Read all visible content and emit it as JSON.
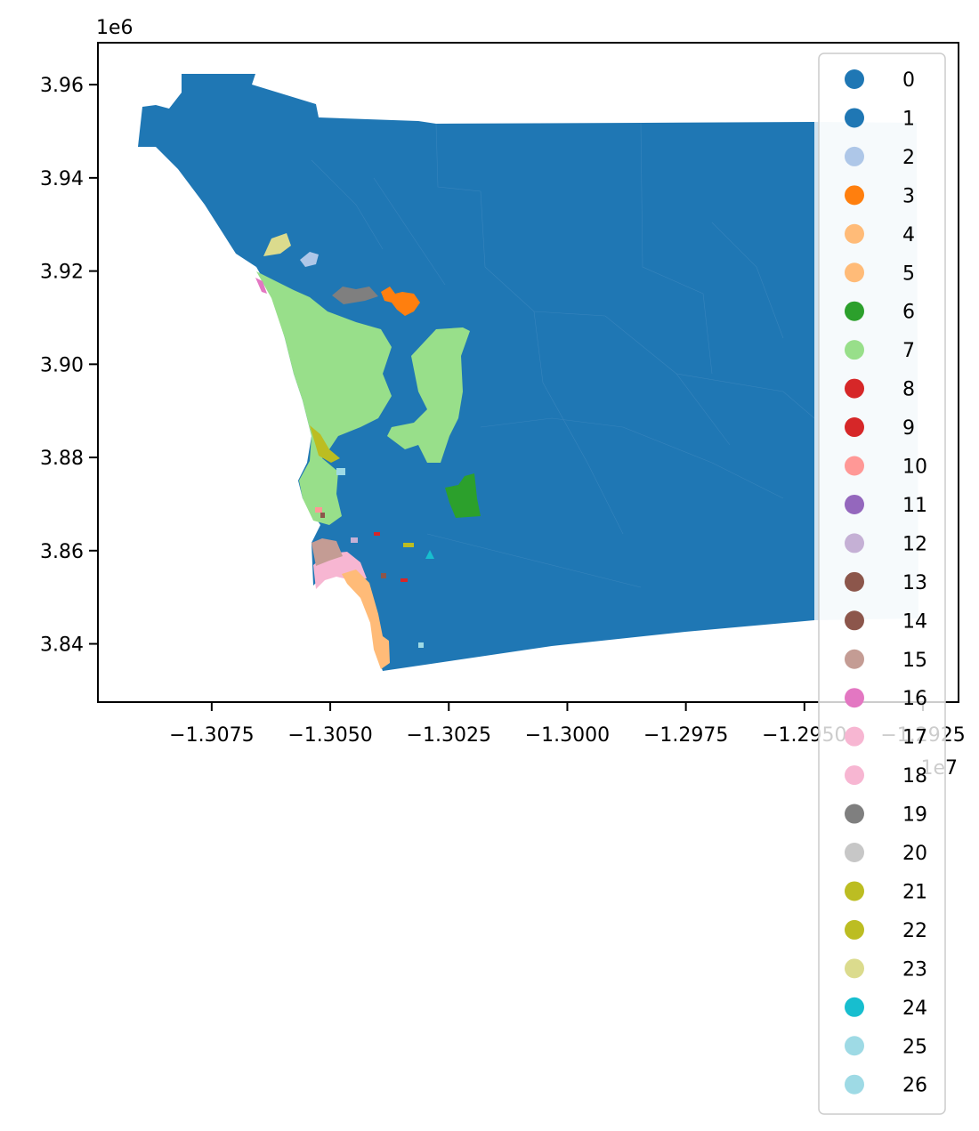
{
  "figure": {
    "x_offset_label": "1e7",
    "y_offset_label": "1e6"
  },
  "axes": {
    "x_ticks": [
      {
        "value": -1.3075,
        "label": "−1.3075"
      },
      {
        "value": -1.305,
        "label": "−1.3050"
      },
      {
        "value": -1.3025,
        "label": "−1.3025"
      },
      {
        "value": -1.3,
        "label": "−1.3000"
      },
      {
        "value": -1.2975,
        "label": "−1.2975"
      },
      {
        "value": -1.295,
        "label": "−1.2950"
      },
      {
        "value": -1.2925,
        "label": "−1.2925"
      }
    ],
    "y_ticks": [
      {
        "value": 3.84,
        "label": "3.84"
      },
      {
        "value": 3.86,
        "label": "3.86"
      },
      {
        "value": 3.88,
        "label": "3.88"
      },
      {
        "value": 3.9,
        "label": "3.90"
      },
      {
        "value": 3.92,
        "label": "3.92"
      },
      {
        "value": 3.94,
        "label": "3.94"
      },
      {
        "value": 3.96,
        "label": "3.96"
      }
    ],
    "xlim": [
      -1.3099,
      -1.29175
    ],
    "ylim": [
      3.8275,
      3.969
    ]
  },
  "map": {
    "county_colors": {
      "west": "#1f77b4",
      "east_strip": "#d2e3f0"
    },
    "legend": [
      {
        "label": "0",
        "color": "#1f77b4"
      },
      {
        "label": "1",
        "color": "#1f77b4"
      },
      {
        "label": "2",
        "color": "#aec7e8"
      },
      {
        "label": "3",
        "color": "#ff7f0e"
      },
      {
        "label": "4",
        "color": "#ffbb78"
      },
      {
        "label": "5",
        "color": "#ffbb78"
      },
      {
        "label": "6",
        "color": "#2ca02c"
      },
      {
        "label": "7",
        "color": "#98df8a"
      },
      {
        "label": "8",
        "color": "#d62728"
      },
      {
        "label": "9",
        "color": "#d62728"
      },
      {
        "label": "10",
        "color": "#ff9896"
      },
      {
        "label": "11",
        "color": "#9467bd"
      },
      {
        "label": "12",
        "color": "#c5b0d5"
      },
      {
        "label": "13",
        "color": "#8c564b"
      },
      {
        "label": "14",
        "color": "#8c564b"
      },
      {
        "label": "15",
        "color": "#c49c94"
      },
      {
        "label": "16",
        "color": "#e377c2"
      },
      {
        "label": "17",
        "color": "#f7b6d2"
      },
      {
        "label": "18",
        "color": "#f7b6d2"
      },
      {
        "label": "19",
        "color": "#7f7f7f"
      },
      {
        "label": "20",
        "color": "#c7c7c7"
      },
      {
        "label": "21",
        "color": "#bcbd22"
      },
      {
        "label": "22",
        "color": "#bcbd22"
      },
      {
        "label": "23",
        "color": "#dbdb8d"
      },
      {
        "label": "24",
        "color": "#17becf"
      },
      {
        "label": "25",
        "color": "#9edae5"
      },
      {
        "label": "26",
        "color": "#9edae5"
      }
    ]
  }
}
